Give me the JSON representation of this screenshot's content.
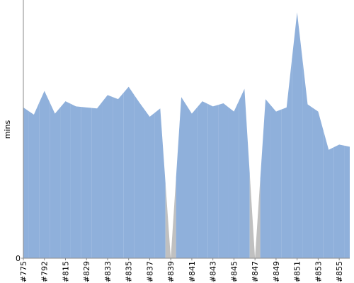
{
  "chart_data": {
    "type": "area",
    "y_label": "mins",
    "categories": [
      "#775",
      null,
      "#792",
      null,
      "#815",
      null,
      "#829",
      null,
      "#833",
      null,
      "#835",
      null,
      "#837",
      null,
      "#839",
      null,
      "#841",
      null,
      "#843",
      null,
      "#845",
      null,
      "#847",
      null,
      "#849",
      null,
      "#851",
      null,
      "#853",
      null,
      "#855",
      null
    ],
    "values": [
      14.6,
      13.9,
      16.2,
      14.0,
      15.2,
      14.7,
      14.6,
      14.5,
      15.8,
      15.4,
      16.6,
      15.1,
      13.7,
      14.5,
      0,
      15.6,
      14.0,
      15.2,
      14.7,
      15.0,
      14.2,
      16.4,
      0,
      15.4,
      14.2,
      14.6,
      23.8,
      14.9,
      14.2,
      10.5,
      11.0,
      10.8
    ],
    "point_colors": [
      "#8fb0db",
      "#8fb0db",
      "#8fb0db",
      "#8fb0db",
      "#8fb0db",
      "#8fb0db",
      "#8fb0db",
      "#8fb0db",
      "#8fb0db",
      "#8fb0db",
      "#8fb0db",
      "#8fb0db",
      "#8fb0db",
      "#8fb0db",
      "#c0c0c0",
      "#8fb0db",
      "#8fb0db",
      "#8fb0db",
      "#8fb0db",
      "#8fb0db",
      "#8fb0db",
      "#8fb0db",
      "#c0c0c0",
      "#8fb0db",
      "#8fb0db",
      "#8fb0db",
      "#8fb0db",
      "#8fb0db",
      "#8fb0db",
      "#8fb0db",
      "#8fb0db",
      "#8fb0db"
    ],
    "ylim": [
      0,
      25
    ],
    "yticks": [
      0
    ]
  }
}
